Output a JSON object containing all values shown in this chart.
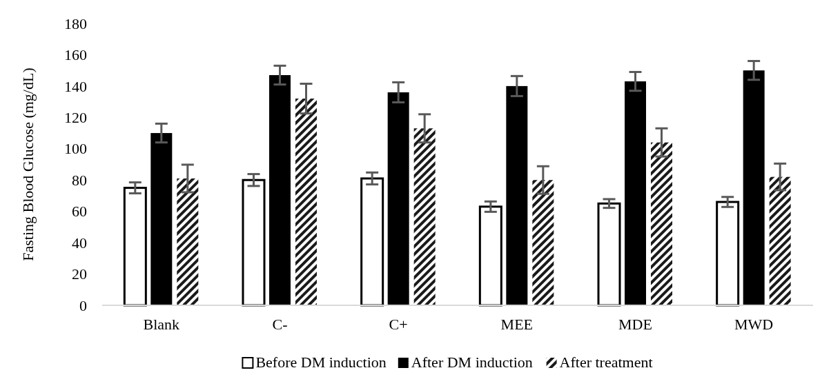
{
  "chart_data": {
    "type": "bar",
    "ylabel": "Fasting Blood Glucose (mg/dL)",
    "categories": [
      "Blank",
      "C-",
      "C+",
      "MEE",
      "MDE",
      "MWD"
    ],
    "series": [
      {
        "name": "Before DM induction",
        "color": "#ffffff",
        "values": [
          75,
          80,
          81,
          63,
          65,
          66
        ],
        "errors": [
          3.5,
          3.8,
          3.8,
          3.3,
          2.8,
          3.2
        ]
      },
      {
        "name": "After DM induction",
        "color": "#000000",
        "values": [
          110,
          147,
          136,
          140,
          143,
          150
        ],
        "errors": [
          6,
          6,
          6.4,
          6.4,
          6,
          6
        ]
      },
      {
        "name": "After treatment",
        "color": "#1a1a1a",
        "values": [
          81,
          132,
          113,
          80,
          104,
          82
        ],
        "errors": [
          8.8,
          9.5,
          9,
          8.8,
          9,
          8.5
        ]
      }
    ],
    "ylim": [
      0,
      180
    ],
    "yticks": [
      0,
      20,
      40,
      60,
      80,
      100,
      120,
      140,
      160,
      180
    ],
    "grid": false,
    "legend": "bottom"
  }
}
